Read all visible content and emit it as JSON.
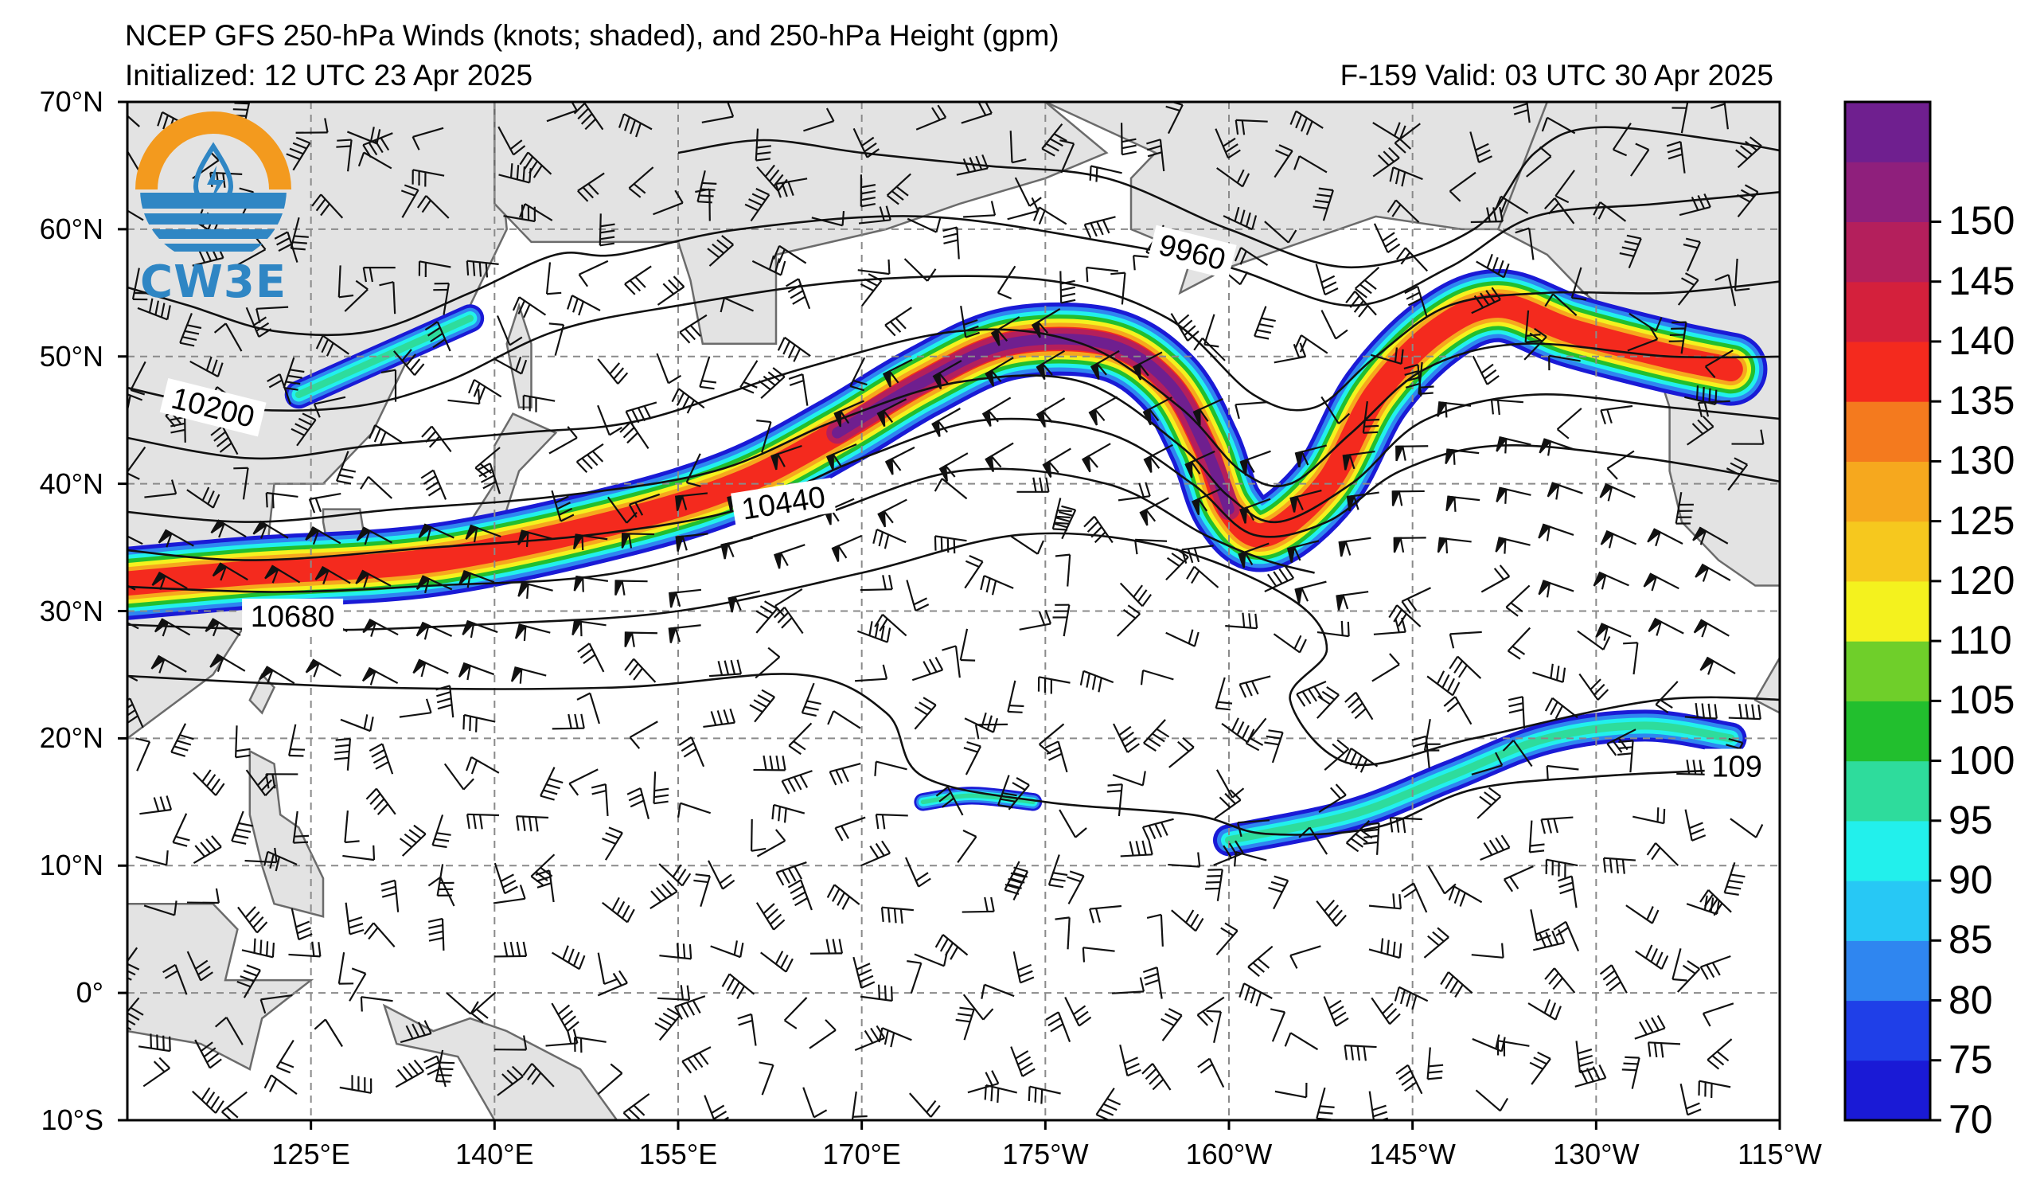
{
  "header": {
    "title": "NCEP GFS 250-hPa Winds (knots; shaded), and 250-hPa Height (gpm)",
    "initialized": "Initialized: 12 UTC 23 Apr 2025",
    "valid": "F-159  Valid: 03 UTC 30 Apr 2025"
  },
  "logo": {
    "text": "CW3E",
    "colors": {
      "orange": "#f39a1e",
      "blue": "#2f86c4"
    }
  },
  "axes": {
    "lat_labels": [
      "70°N",
      "60°N",
      "50°N",
      "40°N",
      "30°N",
      "20°N",
      "10°N",
      "0°",
      "10°S"
    ],
    "lon_labels": [
      "125°E",
      "140°E",
      "155°E",
      "170°E",
      "175°W",
      "160°W",
      "145°W",
      "130°W",
      "115°W"
    ]
  },
  "map": {
    "extent": {
      "lon_min": 110,
      "lon_max": 245,
      "lat_min": -10,
      "lat_max": 70
    },
    "land_color": "#e3e3e3",
    "coast_color": "#6b6b6b",
    "grid_color": "#8a8a8a",
    "contour_labels": [
      {
        "text": "9960",
        "lon": 197,
        "lat": 58.2,
        "rot": 14
      },
      {
        "text": "10200",
        "lon": 117,
        "lat": 46,
        "rot": 14
      },
      {
        "text": "10440",
        "lon": 163.6,
        "lat": 38.5,
        "rot": -9
      },
      {
        "text": "10680",
        "lon": 123.5,
        "lat": 29.6,
        "rot": 0
      },
      {
        "text": "109",
        "lon": 241.5,
        "lat": 17.8,
        "rot": 0
      }
    ]
  },
  "colorbar": {
    "ticks": [
      "70",
      "75",
      "80",
      "85",
      "90",
      "95",
      "100",
      "105",
      "110",
      "120",
      "125",
      "130",
      "135",
      "140",
      "145",
      "150"
    ],
    "colors": [
      "#1a1ad6",
      "#1f3fe8",
      "#2f86f0",
      "#27c8f5",
      "#22f0ec",
      "#2edc9c",
      "#22bf2e",
      "#6fcf2a",
      "#f4f21e",
      "#f6c81e",
      "#f6a81e",
      "#f47a1e",
      "#f42a1e",
      "#d4203c",
      "#b41f5c",
      "#8f1f7c",
      "#6f1f8f"
    ]
  }
}
